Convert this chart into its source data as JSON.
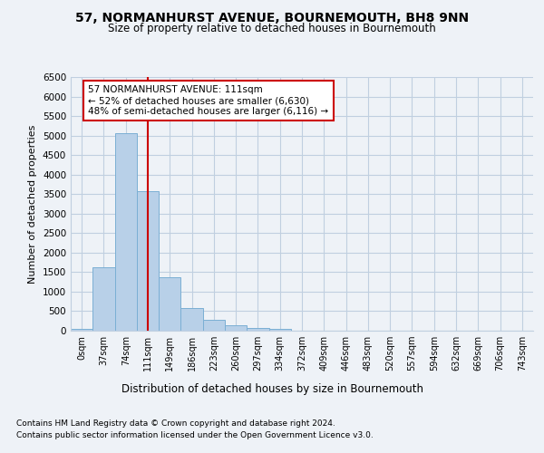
{
  "title": "57, NORMANHURST AVENUE, BOURNEMOUTH, BH8 9NN",
  "subtitle": "Size of property relative to detached houses in Bournemouth",
  "xlabel": "Distribution of detached houses by size in Bournemouth",
  "ylabel": "Number of detached properties",
  "footnote1": "Contains HM Land Registry data © Crown copyright and database right 2024.",
  "footnote2": "Contains public sector information licensed under the Open Government Licence v3.0.",
  "annotation_line1": "57 NORMANHURST AVENUE: 111sqm",
  "annotation_line2": "← 52% of detached houses are smaller (6,630)",
  "annotation_line3": "48% of semi-detached houses are larger (6,116) →",
  "bar_color": "#b8d0e8",
  "bar_edge_color": "#7bafd4",
  "vline_color": "#cc0000",
  "vline_x": 3,
  "categories": [
    "0sqm",
    "37sqm",
    "74sqm",
    "111sqm",
    "149sqm",
    "186sqm",
    "223sqm",
    "260sqm",
    "297sqm",
    "334sqm",
    "372sqm",
    "409sqm",
    "446sqm",
    "483sqm",
    "520sqm",
    "557sqm",
    "594sqm",
    "632sqm",
    "669sqm",
    "706sqm",
    "743sqm"
  ],
  "values": [
    50,
    1620,
    5050,
    3580,
    1380,
    580,
    270,
    130,
    80,
    50,
    10,
    0,
    0,
    0,
    0,
    0,
    0,
    0,
    0,
    0,
    0
  ],
  "ylim": [
    0,
    6500
  ],
  "yticks": [
    0,
    500,
    1000,
    1500,
    2000,
    2500,
    3000,
    3500,
    4000,
    4500,
    5000,
    5500,
    6000,
    6500
  ],
  "background_color": "#eef2f7",
  "plot_bg_color": "#eef2f7",
  "grid_color": "#c0cfe0"
}
